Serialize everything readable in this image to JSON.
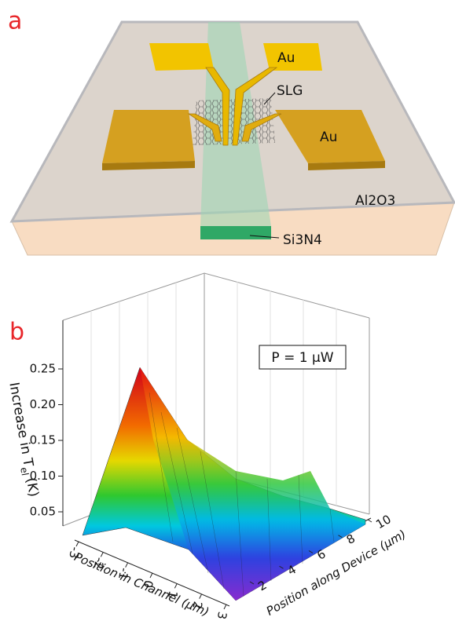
{
  "panel_a": {
    "label": "a",
    "labels": {
      "au_top": "Au",
      "slg": "SLG",
      "au_right": "Au",
      "substrate": "Al2O3",
      "channel": "Si3N4"
    }
  },
  "panel_b": {
    "label": "b",
    "annotation": "P = 1 μW",
    "z_axis_label": {
      "text": "Increase in T",
      "subscript": "el",
      "unit": "(K)"
    },
    "x_axis_label": "Position in Channel (μm)",
    "y_axis_label": "Position along Device (μm)",
    "zticks": [
      0.05,
      {
        "value": 0.1,
        "label": "0.10"
      },
      0.15,
      {
        "value": 0.2,
        "label": "0.20"
      },
      0.25
    ],
    "xticks": [
      -3,
      -2,
      -1,
      0,
      1,
      2,
      3
    ],
    "yticks": [
      2,
      4,
      6,
      8,
      10
    ]
  }
}
